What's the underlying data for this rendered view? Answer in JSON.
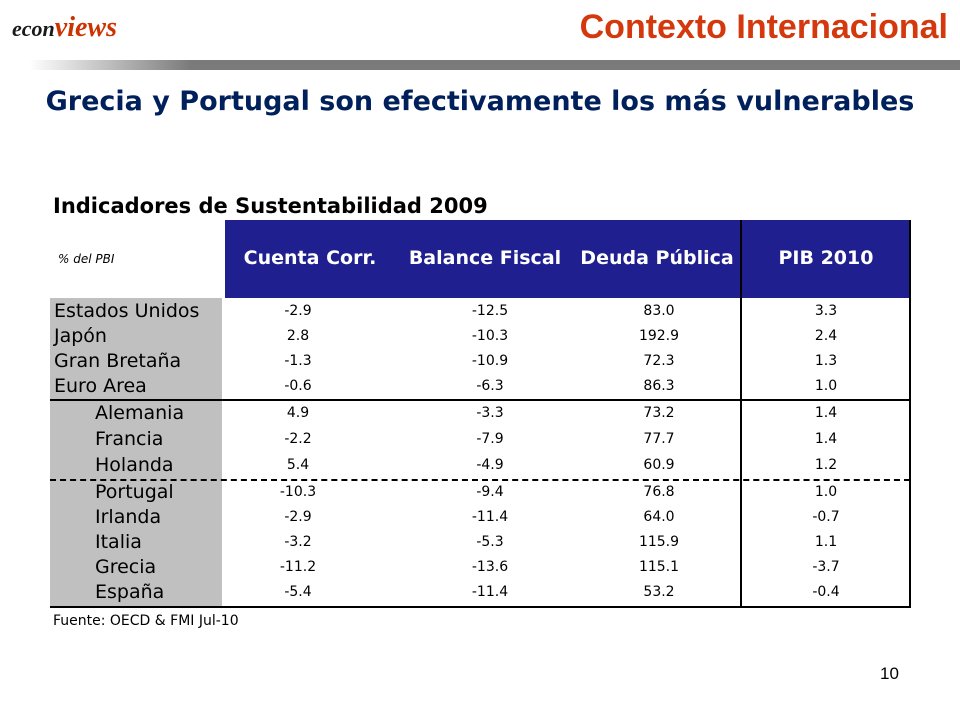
{
  "logo": {
    "prefix": "econ",
    "suffix": "views"
  },
  "header": {
    "section_title": "Contexto Internacional"
  },
  "slide": {
    "title": "Grecia y Portugal son efectivamente los más vulnerables"
  },
  "table": {
    "title": "Indicadores de Sustentabilidad 2009",
    "unit_label": "% del PBI",
    "columns": [
      "Cuenta Corr.",
      "Balance Fiscal",
      "Deuda Pública",
      "PIB 2010"
    ],
    "rows": [
      {
        "country": "Estados Unidos",
        "values": [
          "-2.9",
          "-12.5",
          "83.0",
          "3.3"
        ]
      },
      {
        "country": "Japón",
        "values": [
          "2.8",
          "-10.3",
          "192.9",
          "2.4"
        ]
      },
      {
        "country": "Gran Bretaña",
        "values": [
          "-1.3",
          "-10.9",
          "72.3",
          "1.3"
        ]
      },
      {
        "country": "Euro Area",
        "values": [
          "-0.6",
          "-6.3",
          "86.3",
          "1.0"
        ]
      },
      {
        "country": "Alemania",
        "values": [
          "4.9",
          "-3.3",
          "73.2",
          "1.4"
        ]
      },
      {
        "country": "Francia",
        "values": [
          "-2.2",
          "-7.9",
          "77.7",
          "1.4"
        ]
      },
      {
        "country": "Holanda",
        "values": [
          "5.4",
          "-4.9",
          "60.9",
          "1.2"
        ]
      },
      {
        "country": "Portugal",
        "values": [
          "-10.3",
          "-9.4",
          "76.8",
          "1.0"
        ]
      },
      {
        "country": "Irlanda",
        "values": [
          "-2.9",
          "-11.4",
          "64.0",
          "-0.7"
        ]
      },
      {
        "country": "Italia",
        "values": [
          "-3.2",
          "-5.3",
          "115.9",
          "1.1"
        ]
      },
      {
        "country": "Grecia",
        "values": [
          "-11.2",
          "-13.6",
          "115.1",
          "-3.7"
        ]
      },
      {
        "country": "España",
        "values": [
          "-5.4",
          "-11.4",
          "53.2",
          "-0.4"
        ]
      }
    ],
    "source": "Fuente: OECD & FMI Jul-10"
  },
  "footer": {
    "page_number": "10"
  },
  "colors": {
    "header_bg": "#1f1f8f",
    "title_blue": "#00205b",
    "accent_red": "#d4380d",
    "label_gray": "#c0c0c0"
  }
}
